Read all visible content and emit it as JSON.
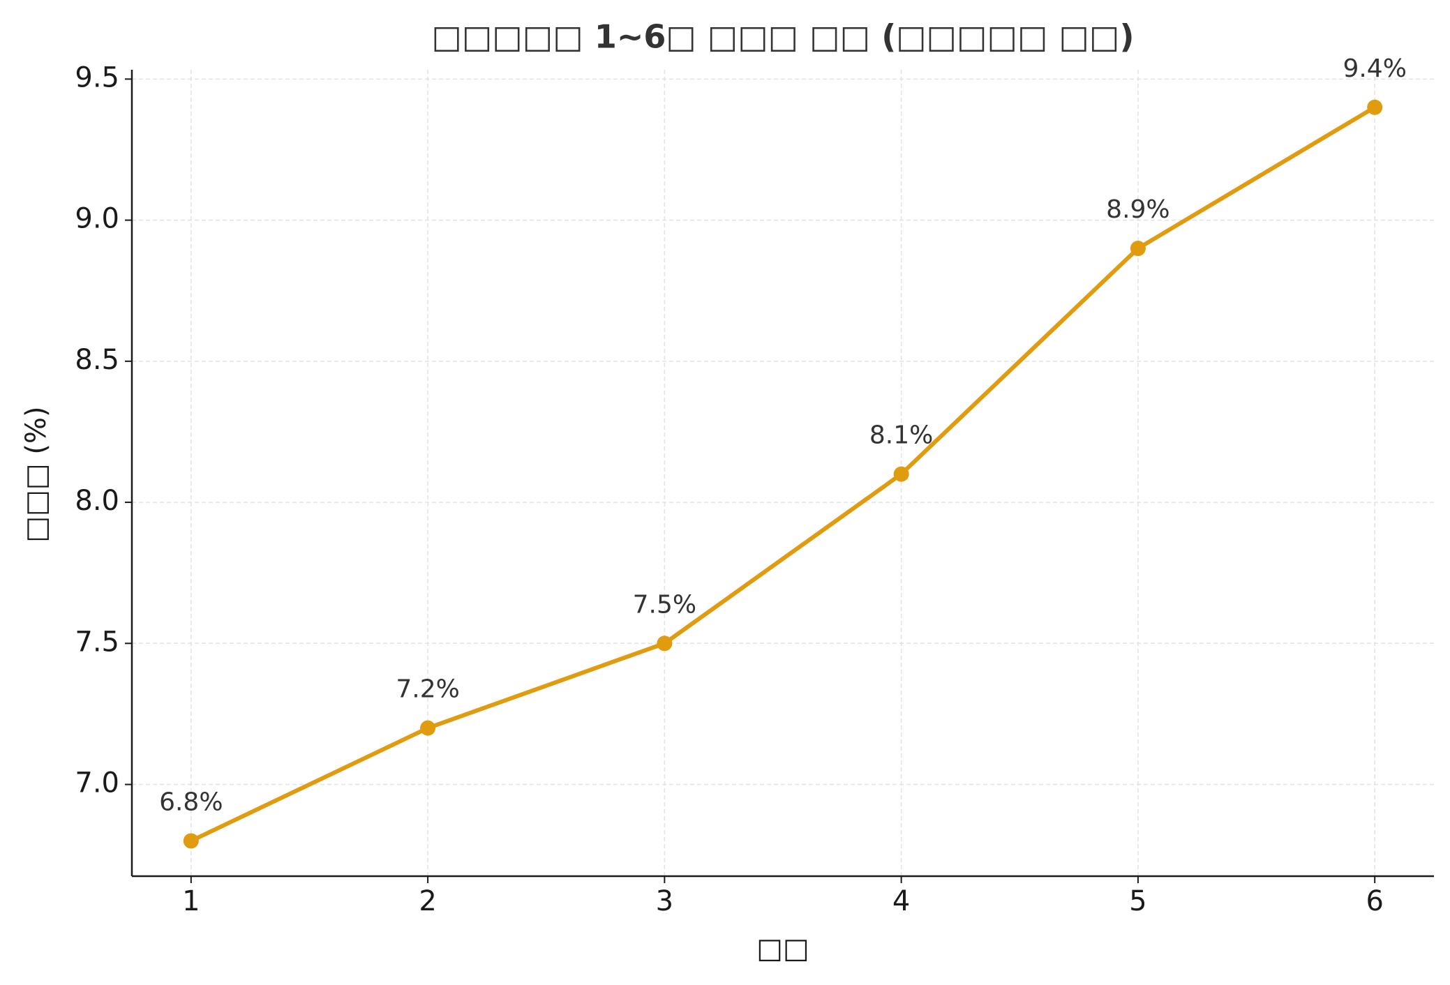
{
  "chart_data": {
    "type": "line",
    "title": "□□□□□ 1~6□ □□□ □□ (□□□□□ □□)",
    "x_label": "□□",
    "y_label": "□□□ (%)",
    "x": [
      1,
      2,
      3,
      4,
      5,
      6
    ],
    "series": [
      {
        "name": "□□□",
        "color": "#e09b0e",
        "values": [
          6.8,
          7.2,
          7.5,
          8.1,
          8.9,
          9.4
        ],
        "value_labels": [
          "6.8%",
          "7.2%",
          "7.5%",
          "8.1%",
          "8.9%",
          "9.4%"
        ]
      }
    ],
    "xlim": [
      0.75,
      6.25
    ],
    "xticks": [
      1,
      2,
      3,
      4,
      5,
      6
    ],
    "ylim": [
      6.675,
      9.533
    ],
    "yticks": [
      {
        "value": 7.0,
        "label": "7.0"
      },
      {
        "value": 7.5,
        "label": "7.5"
      },
      {
        "value": 8.0,
        "label": "8.0"
      },
      {
        "value": 8.5,
        "label": "8.5"
      },
      {
        "value": 9.0,
        "label": "9.0"
      },
      {
        "value": 9.5,
        "label": "9.5"
      }
    ],
    "grid": true
  }
}
